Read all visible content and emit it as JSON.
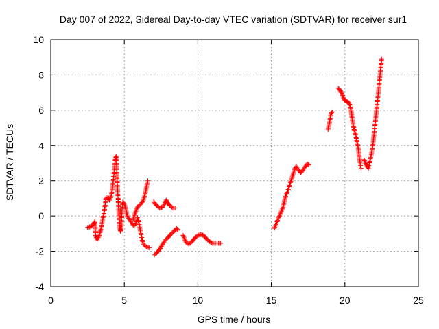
{
  "chart_data": {
    "type": "scatter",
    "title": "Day 007 of 2022, Sidereal Day-to-day VTEC variation (SDTVAR) for receiver sur1",
    "xlabel": "GPS time / hours",
    "ylabel": "SDTVAR / TECUs",
    "xlim": [
      0,
      25
    ],
    "ylim": [
      -4,
      10
    ],
    "xticks": [
      0,
      5,
      10,
      15,
      20,
      25
    ],
    "yticks": [
      -4,
      -2,
      0,
      2,
      4,
      6,
      8,
      10
    ],
    "grid": true,
    "marker": "+",
    "color": "#ff0000",
    "segments": [
      [
        [
          2.5,
          -0.65
        ],
        [
          2.7,
          -0.6
        ],
        [
          2.9,
          -0.5
        ],
        [
          3.0,
          -0.3
        ],
        [
          3.05,
          -1.1
        ],
        [
          3.15,
          -1.35
        ],
        [
          3.3,
          -1.1
        ],
        [
          3.45,
          -0.6
        ],
        [
          3.55,
          -0.1
        ],
        [
          3.65,
          0.3
        ],
        [
          3.75,
          1.0
        ],
        [
          3.9,
          1.05
        ],
        [
          4.0,
          0.9
        ],
        [
          4.1,
          1.1
        ],
        [
          4.2,
          1.6
        ],
        [
          4.3,
          2.4
        ],
        [
          4.4,
          3.3
        ],
        [
          4.45,
          3.4
        ],
        [
          4.5,
          2.3
        ],
        [
          4.55,
          1.4
        ],
        [
          4.6,
          0.6
        ],
        [
          4.65,
          -0.2
        ],
        [
          4.7,
          -0.7
        ],
        [
          4.75,
          -0.9
        ],
        [
          4.8,
          -0.5
        ],
        [
          4.85,
          0.4
        ],
        [
          4.9,
          0.8
        ],
        [
          5.0,
          0.7
        ],
        [
          5.1,
          0.4
        ],
        [
          5.2,
          0.0
        ],
        [
          5.35,
          -0.2
        ],
        [
          5.5,
          -0.4
        ],
        [
          5.65,
          -0.55
        ],
        [
          5.8,
          -0.4
        ],
        [
          5.9,
          -0.1
        ],
        [
          6.0,
          -0.4
        ],
        [
          6.1,
          -0.9
        ],
        [
          6.2,
          -1.3
        ],
        [
          6.3,
          -1.6
        ],
        [
          6.5,
          -1.75
        ],
        [
          6.7,
          -1.8
        ]
      ],
      [
        [
          5.6,
          -0.2
        ],
        [
          5.75,
          0.2
        ],
        [
          5.9,
          0.5
        ],
        [
          6.0,
          0.6
        ],
        [
          6.15,
          0.7
        ],
        [
          6.3,
          0.9
        ],
        [
          6.4,
          1.2
        ],
        [
          6.5,
          1.6
        ],
        [
          6.6,
          2.0
        ]
      ],
      [
        [
          7.05,
          -2.2
        ],
        [
          7.2,
          -2.1
        ],
        [
          7.4,
          -1.9
        ],
        [
          7.6,
          -1.6
        ],
        [
          7.8,
          -1.35
        ],
        [
          8.0,
          -1.2
        ],
        [
          8.2,
          -1.0
        ],
        [
          8.4,
          -0.85
        ],
        [
          8.55,
          -0.7
        ],
        [
          8.65,
          -0.8
        ]
      ],
      [
        [
          7.0,
          0.8
        ],
        [
          7.2,
          0.6
        ],
        [
          7.4,
          0.45
        ],
        [
          7.6,
          0.5
        ],
        [
          7.75,
          0.7
        ],
        [
          7.85,
          0.9
        ],
        [
          7.95,
          0.75
        ],
        [
          8.1,
          0.6
        ],
        [
          8.3,
          0.45
        ],
        [
          8.45,
          0.45
        ]
      ],
      [
        [
          9.0,
          -1.1
        ],
        [
          9.2,
          -1.5
        ],
        [
          9.4,
          -1.6
        ],
        [
          9.6,
          -1.45
        ],
        [
          9.8,
          -1.25
        ],
        [
          10.0,
          -1.1
        ],
        [
          10.2,
          -1.05
        ],
        [
          10.4,
          -1.1
        ],
        [
          10.6,
          -1.3
        ],
        [
          10.8,
          -1.45
        ],
        [
          11.0,
          -1.55
        ],
        [
          11.2,
          -1.55
        ],
        [
          11.4,
          -1.55
        ],
        [
          11.55,
          -1.55
        ]
      ],
      [
        [
          15.2,
          -0.7
        ],
        [
          15.35,
          -0.4
        ],
        [
          15.5,
          -0.1
        ],
        [
          15.65,
          0.2
        ],
        [
          15.8,
          0.5
        ],
        [
          15.9,
          0.9
        ],
        [
          16.0,
          1.2
        ],
        [
          16.15,
          1.5
        ],
        [
          16.3,
          1.9
        ],
        [
          16.45,
          2.3
        ],
        [
          16.6,
          2.7
        ],
        [
          16.7,
          2.8
        ],
        [
          16.85,
          2.6
        ],
        [
          17.0,
          2.45
        ],
        [
          17.15,
          2.6
        ],
        [
          17.3,
          2.8
        ],
        [
          17.45,
          2.95
        ],
        [
          17.55,
          2.9
        ]
      ],
      [
        [
          18.85,
          4.9
        ],
        [
          18.95,
          5.3
        ],
        [
          19.05,
          5.8
        ],
        [
          19.15,
          5.9
        ]
      ],
      [
        [
          19.55,
          7.25
        ],
        [
          19.7,
          7.1
        ],
        [
          19.8,
          6.95
        ],
        [
          19.9,
          6.7
        ],
        [
          20.0,
          6.55
        ],
        [
          20.1,
          6.5
        ],
        [
          20.2,
          6.45
        ],
        [
          20.3,
          6.4
        ],
        [
          20.4,
          6.1
        ],
        [
          20.5,
          5.5
        ],
        [
          20.6,
          5.0
        ],
        [
          20.7,
          4.7
        ],
        [
          20.8,
          4.3
        ],
        [
          20.9,
          3.9
        ],
        [
          21.0,
          3.2
        ],
        [
          21.1,
          2.7
        ]
      ],
      [
        [
          21.3,
          3.2
        ],
        [
          21.4,
          3.0
        ],
        [
          21.5,
          2.85
        ],
        [
          21.6,
          2.7
        ],
        [
          21.7,
          3.1
        ],
        [
          21.8,
          3.5
        ],
        [
          21.9,
          4.0
        ],
        [
          22.0,
          4.8
        ],
        [
          22.1,
          5.6
        ],
        [
          22.2,
          6.4
        ],
        [
          22.3,
          7.2
        ],
        [
          22.4,
          8.1
        ],
        [
          22.5,
          8.9
        ]
      ]
    ]
  }
}
